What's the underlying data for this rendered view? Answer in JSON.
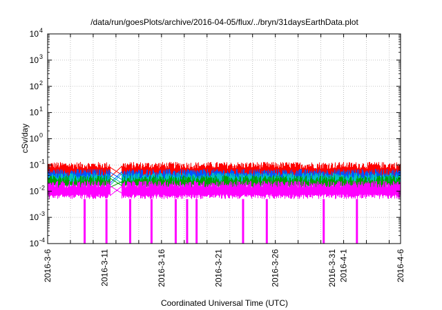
{
  "chart_data": {
    "type": "line",
    "title": "/data/run/goesPlots/archive/2016-04-05/flux/../bryn/31daysEarthData.plot",
    "xlabel": "Coordinated Universal Time (UTC)",
    "ylabel": "cSv/day",
    "yscale": "log",
    "ylim": [
      0.0001,
      10000
    ],
    "xlim": [
      "2016-03-06",
      "2016-04-06"
    ],
    "grid": true,
    "legend": "none",
    "y_tick_labels": [
      {
        "mantissa": "10",
        "exp": "-4",
        "value": 0.0001
      },
      {
        "mantissa": "10",
        "exp": "-3",
        "value": 0.001
      },
      {
        "mantissa": "10",
        "exp": "-2",
        "value": 0.01
      },
      {
        "mantissa": "10",
        "exp": "-1",
        "value": 0.1
      },
      {
        "mantissa": "10",
        "exp": "0",
        "value": 1
      },
      {
        "mantissa": "10",
        "exp": "1",
        "value": 10
      },
      {
        "mantissa": "10",
        "exp": "2",
        "value": 100
      },
      {
        "mantissa": "10",
        "exp": "3",
        "value": 1000
      },
      {
        "mantissa": "10",
        "exp": "4",
        "value": 10000
      }
    ],
    "x_tick_labels": [
      {
        "label": "2016-3-6",
        "date": "2016-03-06"
      },
      {
        "label": "2016-3-11",
        "date": "2016-03-11"
      },
      {
        "label": "2016-3-16",
        "date": "2016-03-16"
      },
      {
        "label": "2016-3-21",
        "date": "2016-03-21"
      },
      {
        "label": "2016-3-26",
        "date": "2016-03-26"
      },
      {
        "label": "2016-3-31",
        "date": "2016-03-31"
      },
      {
        "label": "2016-4-1",
        "date": "2016-04-01"
      },
      {
        "label": "2016-4-6",
        "date": "2016-04-06"
      }
    ],
    "x_grid_dates": [
      "2016-03-08",
      "2016-03-10",
      "2016-03-12",
      "2016-03-14",
      "2016-03-16",
      "2016-03-18",
      "2016-03-20",
      "2016-03-22",
      "2016-03-24",
      "2016-03-26",
      "2016-03-28",
      "2016-03-30",
      "2016-04-01",
      "2016-04-03",
      "2016-04-05"
    ],
    "data_gap": [
      "2016-03-11 12:00",
      "2016-03-12 12:00"
    ],
    "series": [
      {
        "color": "#ff0000",
        "level_min": 0.025,
        "level_max": 0.13
      },
      {
        "color": "#0055ff",
        "level_min": 0.02,
        "level_max": 0.07
      },
      {
        "color": "#00c0c0",
        "level_min": 0.015,
        "level_max": 0.05
      },
      {
        "color": "#00a000",
        "level_min": 0.012,
        "level_max": 0.04
      },
      {
        "color": "#ff00ff",
        "level_min": 0.005,
        "level_max": 0.025,
        "dropouts": [
          "2016-03-09 06:00",
          "2016-03-11 04:00",
          "2016-03-13 06:00",
          "2016-03-15 03:00",
          "2016-03-17 06:00",
          "2016-03-18 06:00",
          "2016-03-19 02:00",
          "2016-03-23 04:00",
          "2016-03-25 06:00",
          "2016-03-30 06:00",
          "2016-04-02 04:00"
        ],
        "dropout_value": 0.0001
      }
    ]
  }
}
